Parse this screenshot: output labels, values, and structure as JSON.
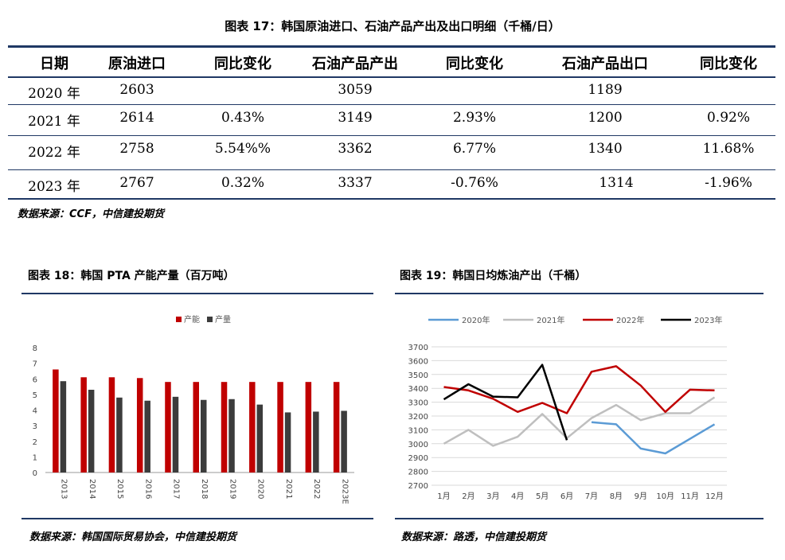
{
  "table": {
    "title": "图表 17：韩国原油进口、石油产品产出及出口明细（千桶/日）",
    "headers": [
      "日期",
      "原油进口",
      "同比变化",
      "石油产品产出",
      "同比变化",
      "石油产品出口",
      "同比变化"
    ],
    "rows": [
      [
        "2020 年",
        "2603",
        "",
        "3059",
        "",
        "1189",
        ""
      ],
      [
        "2021 年",
        "2614",
        "0.43%",
        "3149",
        "2.93%",
        "1200",
        "0.92%"
      ],
      [
        "2022 年",
        "2758",
        "5.54%%",
        "3362",
        "6.77%",
        "1340",
        "11.68%"
      ],
      [
        "2023 年",
        "2767",
        "0.32%",
        "3337",
        "-0.76%",
        "1314",
        "-1.96%"
      ]
    ],
    "source": "数据来源：CCF，中信建投期货"
  },
  "left_panel": {
    "title": "图表 18：韩国 PTA 产能产量（百万吨）",
    "source": "数据来源：韩国国际贸易协会，中信建投期货"
  },
  "right_panel": {
    "title": "图表 19：韩国日均炼油产出（千桶）",
    "source": "数据来源：路透，中信建投期货"
  },
  "colors": {
    "navy": "#1f3864",
    "red": "#c00000",
    "dark": "#3c3c3c",
    "blue": "#5b9bd5",
    "gray": "#bfbfbf",
    "black": "#000000"
  },
  "chart_data": [
    {
      "type": "bar",
      "categories": [
        "2013",
        "2014",
        "2015",
        "2016",
        "2017",
        "2018",
        "2019",
        "2020",
        "2021",
        "2022",
        "2023E"
      ],
      "series": [
        {
          "name": "产能",
          "values": [
            6.6,
            6.1,
            6.1,
            6.05,
            5.8,
            5.8,
            5.8,
            5.8,
            5.8,
            5.8,
            5.8
          ]
        },
        {
          "name": "产量",
          "values": [
            5.85,
            5.3,
            4.8,
            4.6,
            4.85,
            4.65,
            4.7,
            4.35,
            3.85,
            3.9,
            3.95
          ]
        }
      ],
      "ylim": [
        0,
        8
      ],
      "yticks": [
        0,
        1,
        2,
        3,
        4,
        5,
        6,
        7,
        8
      ],
      "legend": "top-center",
      "grid": false
    },
    {
      "type": "line",
      "categories": [
        "1月",
        "2月",
        "3月",
        "4月",
        "5月",
        "6月",
        "7月",
        "8月",
        "9月",
        "10月",
        "11月",
        "12月"
      ],
      "series": [
        {
          "name": "2020年",
          "values": [
            null,
            null,
            null,
            null,
            null,
            null,
            3155,
            3140,
            2965,
            2930,
            3035,
            3140
          ]
        },
        {
          "name": "2021年",
          "values": [
            3000,
            3100,
            2985,
            3050,
            3215,
            3040,
            3185,
            3280,
            3170,
            3220,
            3220,
            3335
          ]
        },
        {
          "name": "2022年",
          "values": [
            3410,
            3385,
            3325,
            3230,
            3295,
            3220,
            3520,
            3560,
            3420,
            3230,
            3390,
            3385
          ]
        },
        {
          "name": "2023年",
          "values": [
            3320,
            3430,
            3340,
            3335,
            3570,
            3025,
            null,
            null,
            null,
            null,
            null,
            null
          ]
        }
      ],
      "ylim": [
        2700,
        3700
      ],
      "yticks": [
        2700,
        2800,
        2900,
        3000,
        3100,
        3200,
        3300,
        3400,
        3500,
        3600,
        3700
      ],
      "legend": "top",
      "grid": true
    }
  ]
}
